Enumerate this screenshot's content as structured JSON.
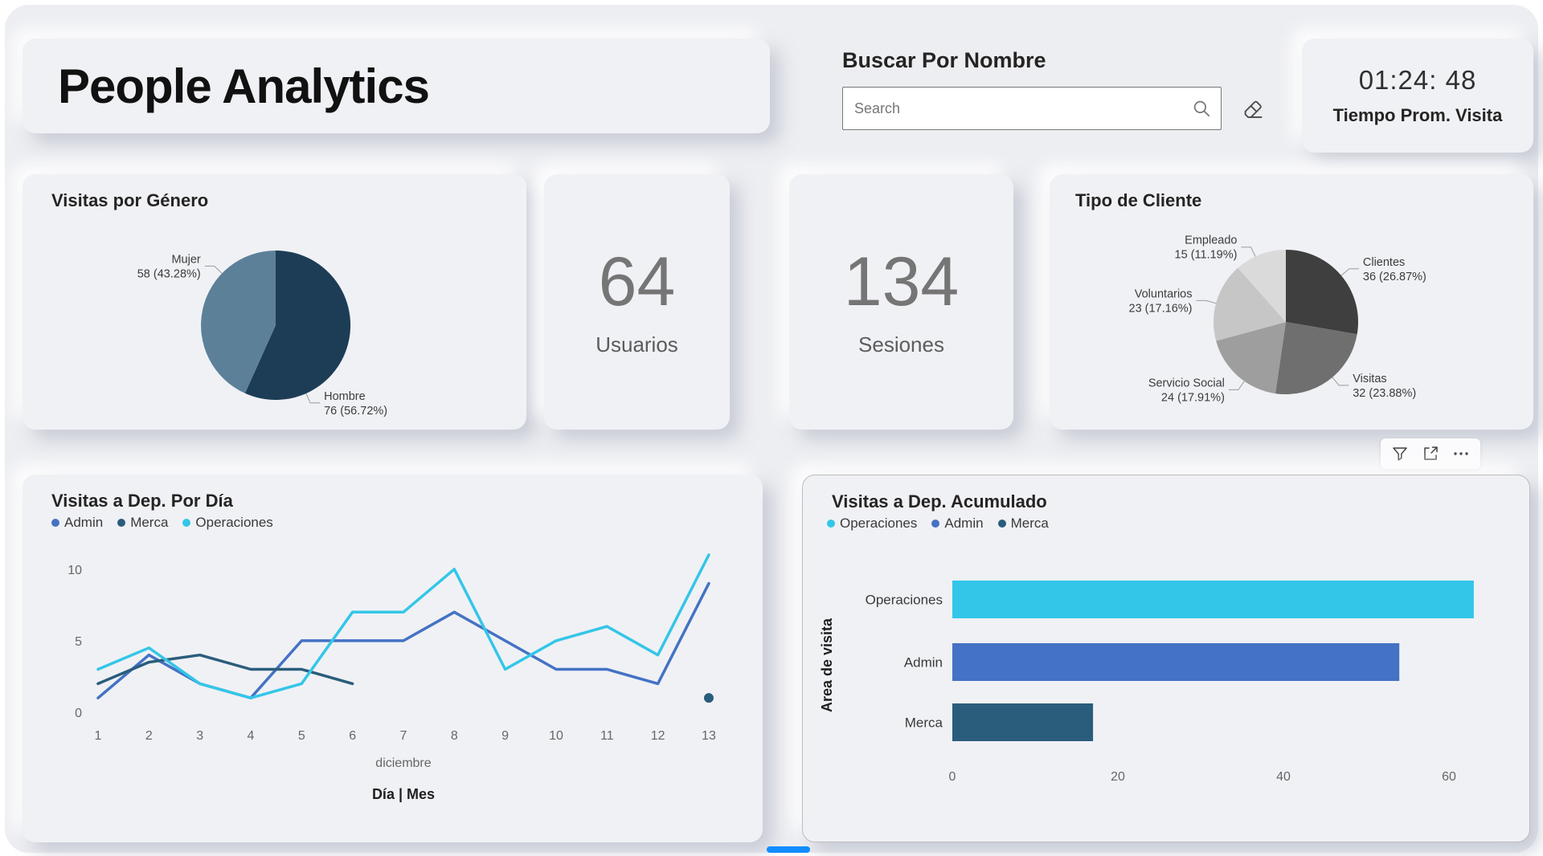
{
  "header": {
    "title": "People Analytics",
    "search_label": "Buscar Por Nombre",
    "search_placeholder": "Search",
    "time_value": "01:24: 48",
    "time_label": "Tiempo Prom. Visita"
  },
  "kpis": [
    {
      "value": "64",
      "label": "Usuarios"
    },
    {
      "value": "134",
      "label": "Sesiones"
    }
  ],
  "icons": [
    "search-icon",
    "eraser-icon",
    "filter-icon",
    "focus-mode-icon",
    "more-options-icon"
  ],
  "colors": {
    "accent_blue": "#118dff",
    "card_bg": "#f0f1f5",
    "board_bg": "#edeef2"
  },
  "chart_data": [
    {
      "type": "pie",
      "title": "Visitas por Género",
      "slices": [
        {
          "label": "Hombre",
          "value": 76,
          "pct": "56.72%",
          "color": "#1d3d56",
          "label_angle": 66
        },
        {
          "label": "Mujer",
          "value": 58,
          "pct": "43.28%",
          "color": "#5d8099",
          "label_angle": -136
        }
      ]
    },
    {
      "type": "pie",
      "title": "Tipo de Cliente",
      "slices": [
        {
          "label": "Clientes",
          "value": 36,
          "pct": "26.87%",
          "color": "#3f3f3f",
          "label_angle": -40
        },
        {
          "label": "Visitas",
          "value": 32,
          "pct": "23.88%",
          "color": "#6f6f6f",
          "label_angle": 50
        },
        {
          "label": "Servicio Social",
          "value": 24,
          "pct": "17.91%",
          "color": "#9e9e9e",
          "label_angle": 125
        },
        {
          "label": "Voluntarios",
          "value": 23,
          "pct": "17.16%",
          "color": "#c6c6c6",
          "label_angle": -165
        },
        {
          "label": "Empleado",
          "value": 15,
          "pct": "11.19%",
          "color": "#dadada",
          "label_angle": -115
        }
      ]
    },
    {
      "type": "line",
      "title": "Visitas a Dep. Por Día",
      "x": [
        1,
        2,
        3,
        4,
        5,
        6,
        7,
        8,
        9,
        10,
        11,
        12,
        13
      ],
      "x_group_label": "diciembre",
      "xlabel": "Día | Mes",
      "yticks": [
        0,
        5,
        10
      ],
      "ylim": [
        0,
        11
      ],
      "grid": false,
      "legend_position": "top",
      "series": [
        {
          "name": "Admin",
          "color": "#4472c4",
          "values": [
            1,
            4,
            2,
            1,
            5,
            5,
            5,
            7,
            5,
            3,
            3,
            2,
            9
          ]
        },
        {
          "name": "Merca",
          "color": "#2a5d7c",
          "values": [
            2,
            3.5,
            4,
            3,
            3,
            2,
            null,
            null,
            null,
            null,
            null,
            null,
            1
          ]
        },
        {
          "name": "Operaciones",
          "color": "#33c6e8",
          "values": [
            3,
            4.5,
            2,
            1,
            2,
            7,
            7,
            10,
            3,
            5,
            6,
            4,
            11
          ]
        }
      ]
    },
    {
      "type": "bar",
      "title": "Visitas a Dep. Acumulado",
      "ylabel": "Area de visita",
      "categories": [
        "Operaciones",
        "Admin",
        "Merca"
      ],
      "values": [
        63,
        54,
        17
      ],
      "colors": [
        "#33c6e8",
        "#4472c4",
        "#2a5d7c"
      ],
      "xticks": [
        0,
        20,
        40,
        60
      ],
      "xlim": [
        0,
        65
      ],
      "legend_position": "top",
      "orientation": "horizontal"
    }
  ]
}
